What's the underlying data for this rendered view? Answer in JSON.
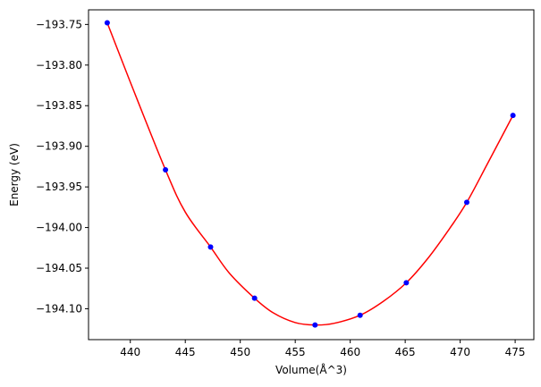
{
  "chart_data": {
    "type": "scatter",
    "title": "",
    "xlabel": "Volume(Å^3)",
    "ylabel": "Energy (eV)",
    "xlim": [
      436.2,
      476.7
    ],
    "ylim": [
      -194.138,
      -193.732
    ],
    "xticks": [
      440,
      445,
      450,
      455,
      460,
      465,
      470,
      475
    ],
    "yticks": [
      -193.75,
      -193.8,
      -193.85,
      -193.9,
      -193.95,
      -194.0,
      -194.05,
      -194.1
    ],
    "grid": false,
    "legend": "none",
    "series": [
      {
        "kind": "points",
        "color": "#0000ff",
        "points": [
          {
            "x": 437.9,
            "y": -193.748
          },
          {
            "x": 443.2,
            "y": -193.929
          },
          {
            "x": 447.3,
            "y": -194.024
          },
          {
            "x": 451.3,
            "y": -194.087
          },
          {
            "x": 456.8,
            "y": -194.12
          },
          {
            "x": 460.9,
            "y": -194.108
          },
          {
            "x": 465.1,
            "y": -194.068
          },
          {
            "x": 470.6,
            "y": -193.969
          },
          {
            "x": 474.8,
            "y": -193.862
          }
        ]
      },
      {
        "kind": "fit-curve",
        "color": "#ff0000",
        "points": [
          {
            "x": 437.9,
            "y": -193.748
          },
          {
            "x": 440.0,
            "y": -193.821
          },
          {
            "x": 443.2,
            "y": -193.929
          },
          {
            "x": 445.0,
            "y": -193.981
          },
          {
            "x": 447.3,
            "y": -194.024
          },
          {
            "x": 449.0,
            "y": -194.056
          },
          {
            "x": 451.3,
            "y": -194.087
          },
          {
            "x": 453.0,
            "y": -194.105
          },
          {
            "x": 455.0,
            "y": -194.117
          },
          {
            "x": 456.8,
            "y": -194.12
          },
          {
            "x": 458.5,
            "y": -194.118
          },
          {
            "x": 460.9,
            "y": -194.108
          },
          {
            "x": 463.0,
            "y": -194.091
          },
          {
            "x": 465.1,
            "y": -194.068
          },
          {
            "x": 467.0,
            "y": -194.039
          },
          {
            "x": 469.0,
            "y": -194.002
          },
          {
            "x": 470.6,
            "y": -193.969
          },
          {
            "x": 472.5,
            "y": -193.921
          },
          {
            "x": 474.8,
            "y": -193.862
          }
        ]
      }
    ]
  }
}
